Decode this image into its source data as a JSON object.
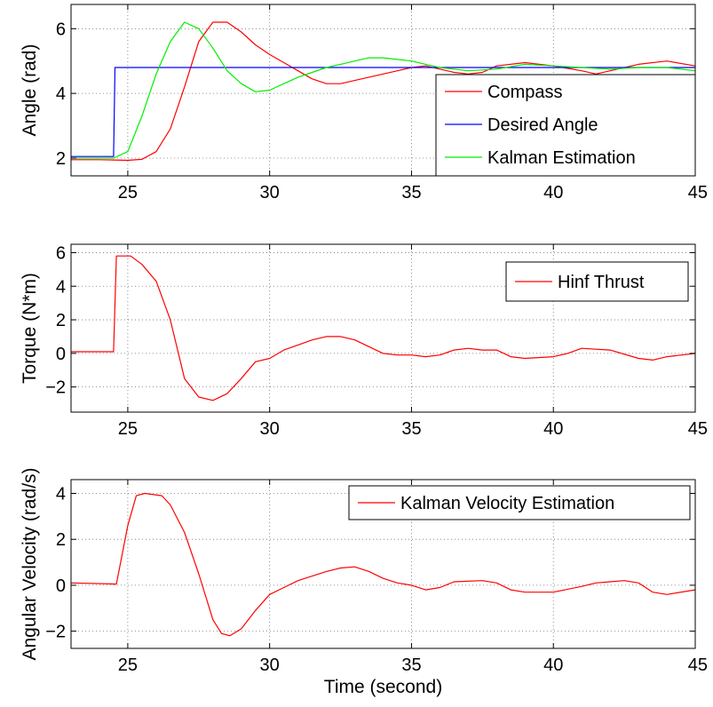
{
  "chart_data": [
    {
      "type": "line",
      "ylabel": "Angle (rad)",
      "xlabel": "",
      "xlim": [
        23,
        45
      ],
      "ylim": [
        1.45,
        6.75
      ],
      "xticks": [
        25,
        30,
        35,
        40,
        45
      ],
      "yticks": [
        2,
        4,
        6
      ],
      "grid": true,
      "legend": "right",
      "series": [
        {
          "name": "Compass",
          "color": "#ff0000",
          "points": [
            [
              23,
              1.95
            ],
            [
              24,
              1.95
            ],
            [
              25,
              1.93
            ],
            [
              25.5,
              1.96
            ],
            [
              26,
              2.2
            ],
            [
              26.5,
              2.9
            ],
            [
              27,
              4.2
            ],
            [
              27.5,
              5.6
            ],
            [
              28,
              6.2
            ],
            [
              28.5,
              6.2
            ],
            [
              29,
              5.9
            ],
            [
              29.5,
              5.5
            ],
            [
              30,
              5.2
            ],
            [
              30.5,
              4.95
            ],
            [
              31,
              4.7
            ],
            [
              31.5,
              4.45
            ],
            [
              32,
              4.3
            ],
            [
              32.5,
              4.3
            ],
            [
              33,
              4.4
            ],
            [
              33.5,
              4.5
            ],
            [
              34,
              4.6
            ],
            [
              34.5,
              4.7
            ],
            [
              35,
              4.8
            ],
            [
              35.5,
              4.85
            ],
            [
              36,
              4.75
            ],
            [
              36.5,
              4.65
            ],
            [
              37,
              4.6
            ],
            [
              37.5,
              4.65
            ],
            [
              38,
              4.85
            ],
            [
              39,
              4.95
            ],
            [
              40,
              4.85
            ],
            [
              41,
              4.7
            ],
            [
              41.5,
              4.6
            ],
            [
              42,
              4.7
            ],
            [
              43,
              4.9
            ],
            [
              44,
              5.0
            ],
            [
              45,
              4.85
            ]
          ]
        },
        {
          "name": "Desired Angle",
          "color": "#0000ff",
          "points": [
            [
              23,
              2.05
            ],
            [
              24.5,
              2.05
            ],
            [
              24.55,
              4.8
            ],
            [
              45,
              4.8
            ]
          ]
        },
        {
          "name": "Kalman Estimation",
          "color": "#00ee00",
          "points": [
            [
              23,
              2.0
            ],
            [
              24.5,
              2.0
            ],
            [
              25,
              2.2
            ],
            [
              25.5,
              3.3
            ],
            [
              26,
              4.6
            ],
            [
              26.5,
              5.6
            ],
            [
              27,
              6.2
            ],
            [
              27.5,
              6.0
            ],
            [
              28,
              5.4
            ],
            [
              28.5,
              4.7
            ],
            [
              29,
              4.3
            ],
            [
              29.5,
              4.05
            ],
            [
              30,
              4.1
            ],
            [
              30.5,
              4.3
            ],
            [
              31,
              4.5
            ],
            [
              31.5,
              4.65
            ],
            [
              32,
              4.8
            ],
            [
              32.5,
              4.9
            ],
            [
              33,
              5.0
            ],
            [
              33.5,
              5.1
            ],
            [
              34,
              5.1
            ],
            [
              34.5,
              5.05
            ],
            [
              35,
              5.0
            ],
            [
              35.5,
              4.9
            ],
            [
              36,
              4.8
            ],
            [
              37,
              4.7
            ],
            [
              38,
              4.75
            ],
            [
              39,
              4.9
            ],
            [
              40,
              4.85
            ],
            [
              41,
              4.8
            ],
            [
              42,
              4.75
            ],
            [
              43,
              4.8
            ],
            [
              44,
              4.8
            ],
            [
              45,
              4.7
            ]
          ]
        }
      ]
    },
    {
      "type": "line",
      "ylabel": "Torque (N*m)",
      "xlabel": "",
      "xlim": [
        23,
        45
      ],
      "ylim": [
        -3.5,
        6.5
      ],
      "xticks": [
        25,
        30,
        35,
        40,
        45
      ],
      "yticks": [
        -2,
        0,
        2,
        4,
        6
      ],
      "grid": true,
      "legend": "top-right",
      "series": [
        {
          "name": "Hinf Thrust",
          "color": "#ff0000",
          "points": [
            [
              23,
              0.1
            ],
            [
              24.5,
              0.1
            ],
            [
              24.6,
              5.8
            ],
            [
              25.1,
              5.8
            ],
            [
              25.5,
              5.3
            ],
            [
              26,
              4.3
            ],
            [
              26.5,
              2.0
            ],
            [
              27,
              -1.5
            ],
            [
              27.5,
              -2.6
            ],
            [
              28,
              -2.8
            ],
            [
              28.5,
              -2.4
            ],
            [
              29,
              -1.5
            ],
            [
              29.5,
              -0.5
            ],
            [
              30,
              -0.3
            ],
            [
              30.5,
              0.2
            ],
            [
              31,
              0.5
            ],
            [
              31.5,
              0.8
            ],
            [
              32,
              1.0
            ],
            [
              32.5,
              1.0
            ],
            [
              33,
              0.8
            ],
            [
              33.5,
              0.4
            ],
            [
              34,
              0.0
            ],
            [
              34.5,
              -0.1
            ],
            [
              35,
              -0.1
            ],
            [
              35.5,
              -0.2
            ],
            [
              36,
              -0.1
            ],
            [
              36.5,
              0.2
            ],
            [
              37,
              0.3
            ],
            [
              37.5,
              0.2
            ],
            [
              38,
              0.2
            ],
            [
              38.5,
              -0.2
            ],
            [
              39,
              -0.3
            ],
            [
              40,
              -0.2
            ],
            [
              40.5,
              0.0
            ],
            [
              41,
              0.3
            ],
            [
              42,
              0.2
            ],
            [
              43,
              -0.3
            ],
            [
              43.5,
              -0.4
            ],
            [
              44,
              -0.2
            ],
            [
              45,
              0.0
            ]
          ]
        }
      ]
    },
    {
      "type": "line",
      "ylabel": "Angular Velocity  (rad/s)",
      "xlabel": "Time (second)",
      "xlim": [
        23,
        45
      ],
      "ylim": [
        -2.75,
        4.6
      ],
      "xticks": [
        25,
        30,
        35,
        40,
        45
      ],
      "yticks": [
        -2,
        0,
        2,
        4
      ],
      "grid": true,
      "legend": "top-right",
      "series": [
        {
          "name": "Kalman Velocity Estimation",
          "color": "#ff0000",
          "points": [
            [
              23,
              0.1
            ],
            [
              24.6,
              0.05
            ],
            [
              25,
              2.6
            ],
            [
              25.3,
              3.9
            ],
            [
              25.6,
              4.0
            ],
            [
              26.2,
              3.9
            ],
            [
              26.5,
              3.5
            ],
            [
              27,
              2.3
            ],
            [
              27.5,
              0.5
            ],
            [
              28,
              -1.5
            ],
            [
              28.3,
              -2.1
            ],
            [
              28.6,
              -2.2
            ],
            [
              29,
              -1.9
            ],
            [
              29.5,
              -1.1
            ],
            [
              30,
              -0.4
            ],
            [
              30.5,
              -0.1
            ],
            [
              31,
              0.2
            ],
            [
              31.5,
              0.4
            ],
            [
              32,
              0.6
            ],
            [
              32.5,
              0.75
            ],
            [
              33,
              0.8
            ],
            [
              33.5,
              0.6
            ],
            [
              34,
              0.3
            ],
            [
              34.5,
              0.1
            ],
            [
              35,
              0.0
            ],
            [
              35.5,
              -0.2
            ],
            [
              36,
              -0.1
            ],
            [
              36.5,
              0.15
            ],
            [
              37.5,
              0.2
            ],
            [
              38,
              0.1
            ],
            [
              38.5,
              -0.2
            ],
            [
              39,
              -0.3
            ],
            [
              40,
              -0.3
            ],
            [
              41,
              -0.05
            ],
            [
              41.5,
              0.1
            ],
            [
              42,
              0.15
            ],
            [
              42.5,
              0.2
            ],
            [
              43,
              0.1
            ],
            [
              43.5,
              -0.3
            ],
            [
              44,
              -0.4
            ],
            [
              45,
              -0.2
            ]
          ]
        }
      ]
    }
  ]
}
